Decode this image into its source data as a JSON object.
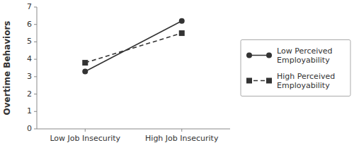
{
  "chart_data": {
    "type": "line",
    "categories": [
      "Low Job Insecurity",
      "High Job Insecurity"
    ],
    "series": [
      {
        "name": "Low Perceived\nEmployability",
        "color": "#333333",
        "values": [
          3.3,
          6.2
        ],
        "marker": "circle",
        "line_style": "solid"
      },
      {
        "name": "High Perceived\nEmployability",
        "color": "#333333",
        "values": [
          3.8,
          5.5
        ],
        "marker": "square",
        "line_style": "dashed"
      }
    ],
    "ylabel": "Overtime Behaviors",
    "ylim": [
      0,
      7
    ],
    "yticks": [
      0,
      1,
      2,
      3,
      4,
      5,
      6,
      7
    ],
    "grid": false,
    "legend": "right"
  }
}
